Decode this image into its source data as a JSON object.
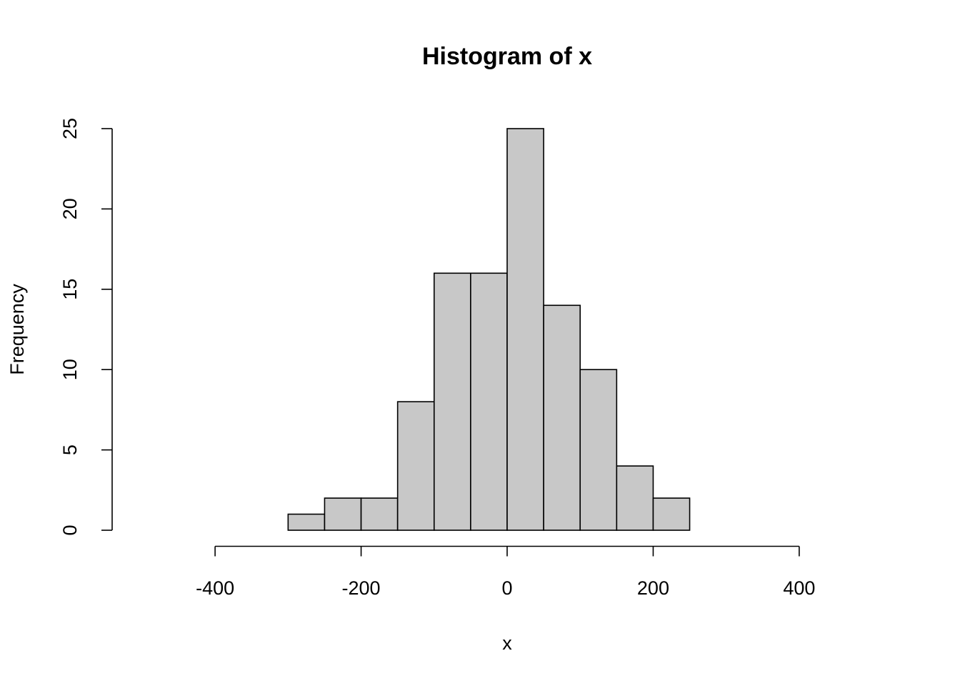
{
  "chart_data": {
    "type": "histogram",
    "title": "Histogram of x",
    "x_label": "x",
    "y_label": "Frequency",
    "bins": [
      -300,
      -250,
      -200,
      -150,
      -100,
      -50,
      0,
      50,
      100,
      150,
      200,
      250
    ],
    "values": [
      1,
      2,
      2,
      8,
      16,
      16,
      25,
      14,
      10,
      4,
      2
    ],
    "color": "#c8c8c8",
    "xlim": [
      -540,
      540
    ],
    "xticks": [
      -400,
      -200,
      0,
      200,
      400
    ],
    "ylim": [
      -1,
      26
    ],
    "yticks": [
      0,
      5,
      10,
      15,
      20,
      25
    ]
  }
}
